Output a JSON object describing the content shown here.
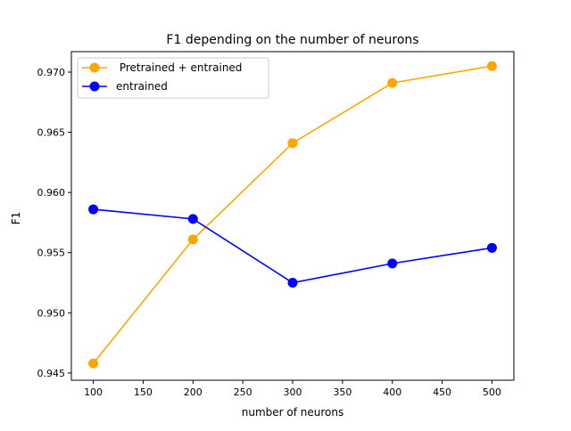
{
  "chart_data": {
    "type": "line",
    "title": "F1 depending on the number of neurons",
    "xlabel": "number of neurons",
    "ylabel": "F1",
    "x": [
      100,
      200,
      300,
      400,
      500
    ],
    "xlim": [
      78,
      522
    ],
    "ylim": [
      0.9444,
      0.9717
    ],
    "xticks": [
      100,
      150,
      200,
      250,
      300,
      350,
      400,
      450,
      500
    ],
    "yticks": [
      0.945,
      0.95,
      0.955,
      0.96,
      0.965,
      0.97
    ],
    "xtick_labels": [
      "100",
      "150",
      "200",
      "250",
      "300",
      "350",
      "400",
      "450",
      "500"
    ],
    "ytick_labels": [
      "0.945",
      "0.950",
      "0.955",
      "0.960",
      "0.965",
      "0.970"
    ],
    "grid": false,
    "legend_position": "top-left",
    "series": [
      {
        "name": " Pretrained + entrained",
        "color": "#ffa500",
        "marker": "circle",
        "values": [
          0.9458,
          0.9561,
          0.9641,
          0.9691,
          0.9705
        ]
      },
      {
        "name": "entrained",
        "color": "#0000ff",
        "marker": "circle",
        "values": [
          0.9586,
          0.9578,
          0.9525,
          0.9541,
          0.9554
        ]
      }
    ]
  }
}
